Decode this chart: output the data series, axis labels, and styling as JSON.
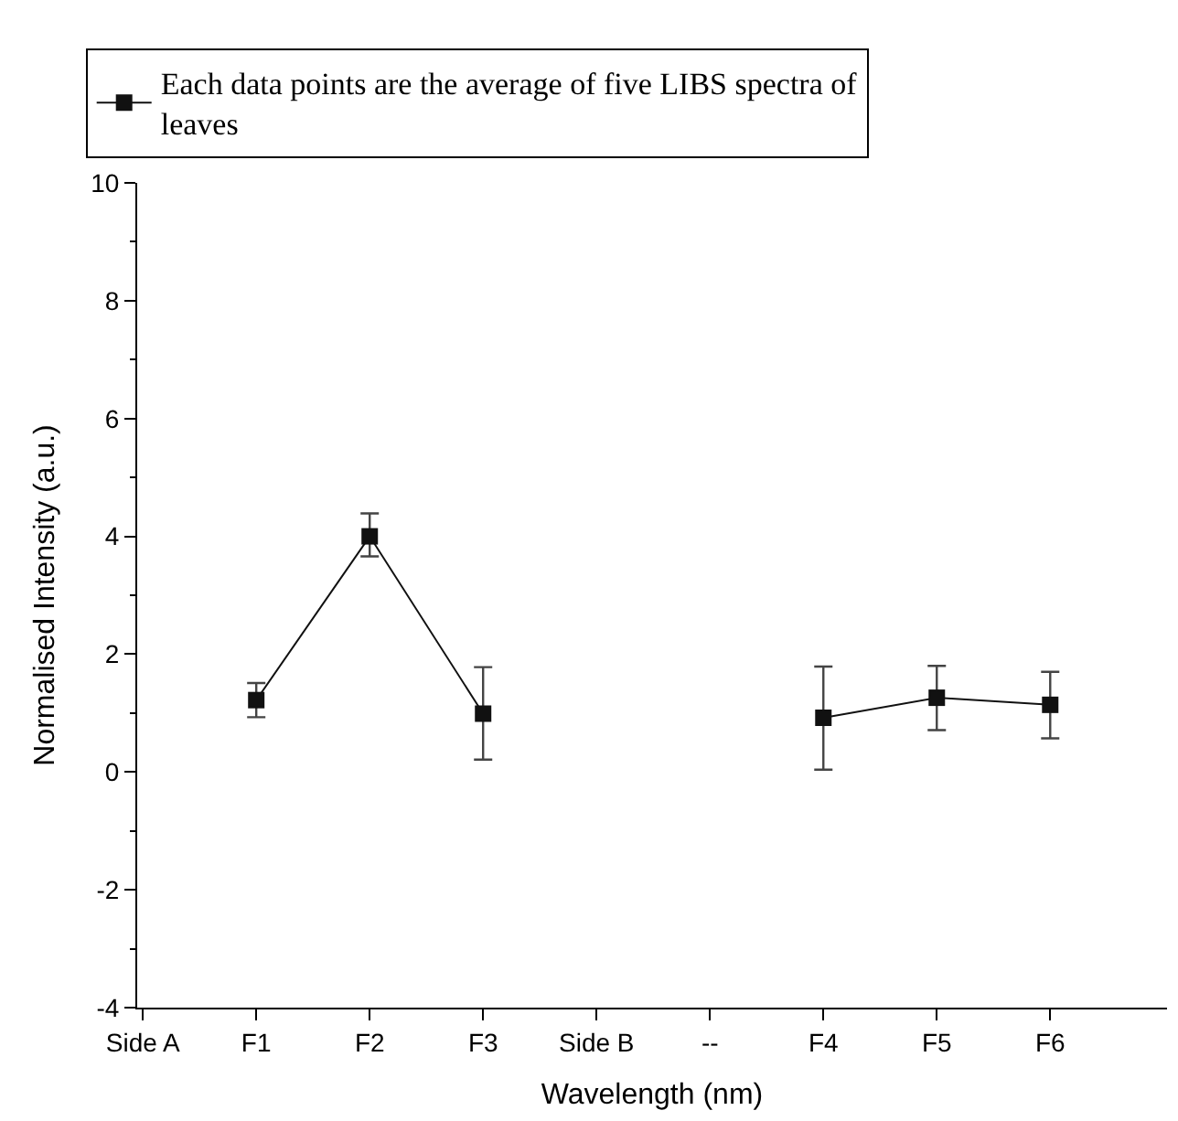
{
  "chart_data": {
    "type": "line",
    "xlabel": "Wavelength (nm)",
    "ylabel": "Normalised Intensity (a.u.)",
    "categories": [
      "Side A",
      "F1",
      "F2",
      "F3",
      "Side B",
      "--",
      "F4",
      "F5",
      "F6",
      null
    ],
    "series": [
      {
        "name": "Each data points are the average of five LIBS spectra of leaves",
        "color": "#111111",
        "values": [
          null,
          1.22,
          4.0,
          0.99,
          null,
          null,
          0.92,
          1.26,
          1.14,
          null
        ],
        "errors": [
          null,
          [
            0.93,
            1.51
          ],
          [
            3.66,
            4.39
          ],
          [
            0.21,
            1.78
          ],
          null,
          null,
          [
            0.04,
            1.79
          ],
          [
            0.71,
            1.8
          ],
          [
            0.57,
            1.7
          ],
          null
        ]
      }
    ],
    "ylim": [
      -4,
      10
    ],
    "yticks": [
      -4,
      -2,
      0,
      2,
      4,
      6,
      8,
      10
    ],
    "legend": "top",
    "marker": "square",
    "line_style": "solid"
  }
}
